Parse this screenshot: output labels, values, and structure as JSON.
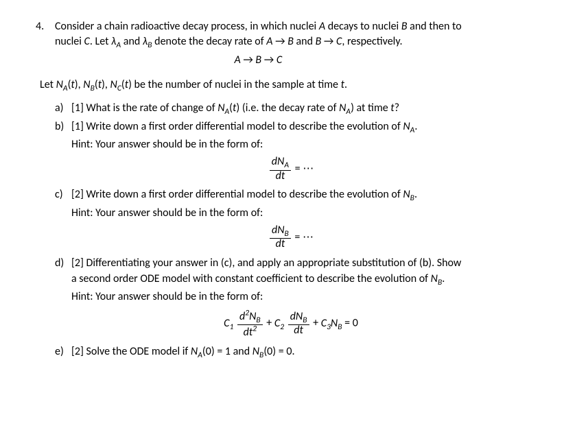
{
  "question": {
    "number": "4.",
    "intro_line1_html": "Consider a chain radioactive decay process, in which nuclei <span class='it'>A</span> decays to nuclei <span class='it'>B</span> and then to",
    "intro_line2_html": "nuclei <span class='it'>C</span>. Let <span class='it'>λ<span class='sub'>A</span></span> and <span class='it'>λ<span class='sub'>B</span></span> denote the decay rate of <span class='it'>A</span> → <span class='it'>B</span> and <span class='it'>B</span> → <span class='it'>C</span>, respectively.",
    "chain_html": "<span class='it'>A</span> → <span class='it'>B</span> → <span class='it'>C</span>",
    "let_line_html": "Let <span class='it'>N<span class='sub'>A</span></span>(<span class='it'>t</span>), <span class='it'>N<span class='sub'>B</span></span>(<span class='it'>t</span>), <span class='it'>N<span class='sub'>C</span></span>(<span class='it'>t</span>) be the number of nuclei in the sample at time <span class='it'>t</span>."
  },
  "parts": {
    "a": {
      "label": "a)",
      "text_html": "[1] What is the rate of change of <span class='it'>N<span class='sub'>A</span></span>(<span class='it'>t</span>) (i.e. the decay rate of <span class='it'>N<span class='sub'>A</span></span>) at time <span class='it'>t</span>?"
    },
    "b": {
      "label": "b)",
      "text_html": "[1] Write down a first order differential model to describe the evolution of <span class='it'>N<span class='sub'>A</span></span>.",
      "hint": "Hint: Your answer should be in the form of:",
      "eq": {
        "num_html": "<span class='it'>dN<span class='sub'>A</span></span>",
        "den_html": "<span class='it'>dt</span>",
        "rhs": "= ⋯"
      }
    },
    "c": {
      "label": "c)",
      "text_html": "[2] Write down a first order differential model to describe the evolution of <span class='it'>N<span class='sub'>B</span></span>.",
      "hint": "Hint: Your answer should be in the form of:",
      "eq": {
        "num_html": "<span class='it'>dN<span class='sub'>B</span></span>",
        "den_html": "<span class='it'>dt</span>",
        "rhs": "= ⋯"
      }
    },
    "d": {
      "label": "d)",
      "text_line1_html": "[2] Differentiating your answer in (c), and apply an appropriate substitution of (b). Show",
      "text_line2_html": "a second order ODE model with constant coefficient to describe the evolution of <span class='it'>N<span class='sub'>B</span></span>.",
      "hint": "Hint: Your answer should be in the form of:",
      "eq": {
        "c1": "C",
        "c1_sub": "1",
        "t1_num_html": "<span class='it'>d<span class='sup'>2</span>N<span class='sub'>B</span></span>",
        "t1_den_html": "<span class='it'>dt<span class='sup'>2</span></span>",
        "plus1": " + ",
        "c2": "C",
        "c2_sub": "2",
        "t2_num_html": "<span class='it'>dN<span class='sub'>B</span></span>",
        "t2_den_html": "<span class='it'>dt</span>",
        "plus2": " + ",
        "c3": "C",
        "c3_sub": "3",
        "nb_html": "<span class='it'>N<span class='sub'>B</span></span>",
        "zero": " = 0"
      }
    },
    "e": {
      "label": "e)",
      "text_html": "[2] Solve the ODE model if <span class='it'>N<span class='sub'>A</span></span>(0) = 1 and <span class='it'>N<span class='sub'>B</span></span>(0) = 0."
    }
  }
}
